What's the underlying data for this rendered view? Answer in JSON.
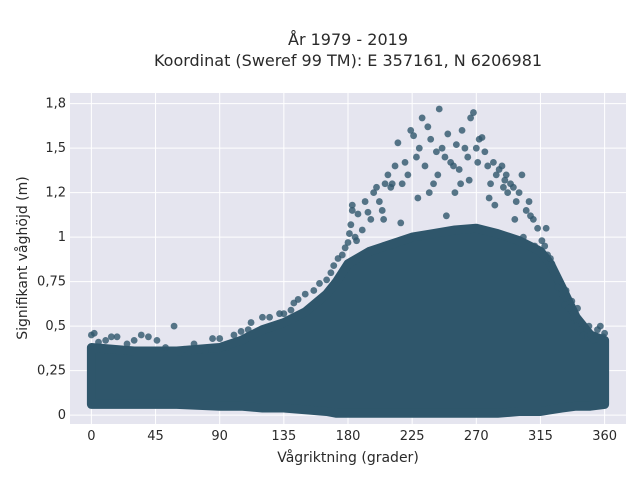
{
  "chart_data": {
    "type": "scatter",
    "title_line1": "År 1979 - 2019",
    "title_line2": "Koordinat (Sweref 99 TM): E 357161, N 6206981",
    "xlabel": "Vågriktning (grader)",
    "ylabel": "Signifikant våghöjd (m)",
    "xlim": [
      -15,
      375
    ],
    "ylim": [
      -0.05,
      1.81
    ],
    "x_ticks": [
      {
        "value": 0,
        "label": "0"
      },
      {
        "value": 45,
        "label": "45"
      },
      {
        "value": 90,
        "label": "90"
      },
      {
        "value": 135,
        "label": "135"
      },
      {
        "value": 180,
        "label": "180"
      },
      {
        "value": 225,
        "label": "225"
      },
      {
        "value": 270,
        "label": "270"
      },
      {
        "value": 315,
        "label": "315"
      },
      {
        "value": 360,
        "label": "360"
      }
    ],
    "y_ticks": [
      {
        "value": 0,
        "label": "0"
      },
      {
        "value": 0.25,
        "label": "0,25"
      },
      {
        "value": 0.5,
        "label": "0,5"
      },
      {
        "value": 0.75,
        "label": "0,75"
      },
      {
        "value": 1,
        "label": "1"
      },
      {
        "value": 1.25,
        "label": "1,2"
      },
      {
        "value": 1.5,
        "label": "1,5"
      },
      {
        "value": 1.75,
        "label": "1,8"
      }
    ],
    "grid": true,
    "colors": {
      "plot_bg": "#e5e5ef",
      "grid": "#ffffff",
      "marker": "#2f566b"
    },
    "series": [
      {
        "points": [
          [
            0,
            0.45
          ],
          [
            2,
            0.46
          ],
          [
            5,
            0.41
          ],
          [
            10,
            0.42
          ],
          [
            14,
            0.44
          ],
          [
            18,
            0.44
          ],
          [
            25,
            0.4
          ],
          [
            30,
            0.42
          ],
          [
            35,
            0.45
          ],
          [
            40,
            0.44
          ],
          [
            46,
            0.42
          ],
          [
            52,
            0.38
          ],
          [
            58,
            0.5
          ],
          [
            65,
            0.37
          ],
          [
            72,
            0.4
          ],
          [
            80,
            0.36
          ],
          [
            85,
            0.43
          ],
          [
            90,
            0.43
          ],
          [
            95,
            0.38
          ],
          [
            100,
            0.45
          ],
          [
            105,
            0.47
          ],
          [
            110,
            0.48
          ],
          [
            112,
            0.52
          ],
          [
            120,
            0.55
          ],
          [
            125,
            0.55
          ],
          [
            132,
            0.57
          ],
          [
            135,
            0.57
          ],
          [
            140,
            0.59
          ],
          [
            142,
            0.63
          ],
          [
            145,
            0.65
          ],
          [
            150,
            0.68
          ],
          [
            156,
            0.7
          ],
          [
            160,
            0.74
          ],
          [
            165,
            0.76
          ],
          [
            168,
            0.8
          ],
          [
            170,
            0.84
          ],
          [
            173,
            0.88
          ],
          [
            176,
            0.9
          ],
          [
            178,
            0.94
          ],
          [
            180,
            0.97
          ],
          [
            181,
            1.02
          ],
          [
            182,
            1.07
          ],
          [
            183,
            1.18
          ],
          [
            185,
            1.0
          ],
          [
            187,
            1.13
          ],
          [
            190,
            1.04
          ],
          [
            192,
            1.2
          ],
          [
            194,
            1.14
          ],
          [
            196,
            1.1
          ],
          [
            198,
            1.25
          ],
          [
            200,
            1.28
          ],
          [
            202,
            1.2
          ],
          [
            204,
            1.15
          ],
          [
            206,
            1.3
          ],
          [
            208,
            1.35
          ],
          [
            210,
            1.28
          ],
          [
            213,
            1.4
          ],
          [
            215,
            1.53
          ],
          [
            218,
            1.3
          ],
          [
            220,
            1.42
          ],
          [
            222,
            1.35
          ],
          [
            224,
            1.6
          ],
          [
            226,
            1.57
          ],
          [
            228,
            1.45
          ],
          [
            230,
            1.5
          ],
          [
            232,
            1.67
          ],
          [
            234,
            1.4
          ],
          [
            236,
            1.62
          ],
          [
            238,
            1.55
          ],
          [
            240,
            1.3
          ],
          [
            242,
            1.48
          ],
          [
            244,
            1.72
          ],
          [
            246,
            1.5
          ],
          [
            248,
            1.45
          ],
          [
            250,
            1.58
          ],
          [
            252,
            1.42
          ],
          [
            254,
            1.4
          ],
          [
            256,
            1.52
          ],
          [
            258,
            1.38
          ],
          [
            260,
            1.6
          ],
          [
            262,
            1.5
          ],
          [
            264,
            1.45
          ],
          [
            266,
            1.67
          ],
          [
            268,
            1.7
          ],
          [
            270,
            1.5
          ],
          [
            272,
            1.55
          ],
          [
            274,
            1.56
          ],
          [
            276,
            1.48
          ],
          [
            278,
            1.4
          ],
          [
            280,
            1.3
          ],
          [
            282,
            1.42
          ],
          [
            284,
            1.35
          ],
          [
            286,
            1.38
          ],
          [
            288,
            1.4
          ],
          [
            290,
            1.32
          ],
          [
            292,
            1.25
          ],
          [
            294,
            1.3
          ],
          [
            296,
            1.28
          ],
          [
            298,
            1.2
          ],
          [
            300,
            1.25
          ],
          [
            302,
            1.35
          ],
          [
            305,
            1.15
          ],
          [
            308,
            1.12
          ],
          [
            310,
            1.1
          ],
          [
            313,
            1.05
          ],
          [
            316,
            0.98
          ],
          [
            318,
            0.95
          ],
          [
            320,
            0.9
          ],
          [
            322,
            0.88
          ],
          [
            325,
            0.8
          ],
          [
            327,
            0.72
          ],
          [
            330,
            0.68
          ],
          [
            332,
            0.62
          ],
          [
            335,
            0.6
          ],
          [
            338,
            0.55
          ],
          [
            340,
            0.5
          ],
          [
            343,
            0.48
          ],
          [
            345,
            0.45
          ],
          [
            348,
            0.44
          ],
          [
            350,
            0.45
          ],
          [
            352,
            0.42
          ],
          [
            355,
            0.48
          ],
          [
            357,
            0.5
          ],
          [
            359,
            0.44
          ],
          [
            360,
            0.46
          ],
          [
            183,
            1.15
          ],
          [
            205,
            1.1
          ],
          [
            217,
            1.08
          ],
          [
            229,
            1.22
          ],
          [
            237,
            1.25
          ],
          [
            249,
            1.12
          ],
          [
            259,
            1.3
          ],
          [
            271,
            1.42
          ],
          [
            279,
            1.22
          ],
          [
            289,
            1.28
          ],
          [
            297,
            1.1
          ],
          [
            303,
            1.0
          ],
          [
            311,
            0.95
          ],
          [
            323,
            0.85
          ],
          [
            333,
            0.7
          ],
          [
            341,
            0.6
          ],
          [
            186,
            0.98
          ],
          [
            211,
            1.3
          ],
          [
            243,
            1.35
          ],
          [
            255,
            1.25
          ],
          [
            265,
            1.32
          ],
          [
            283,
            1.18
          ],
          [
            291,
            1.35
          ],
          [
            307,
            1.2
          ],
          [
            319,
            1.05
          ],
          [
            337,
            0.64
          ],
          [
            349,
            0.5
          ]
        ]
      }
    ],
    "density_envelope": {
      "x": [
        0,
        30,
        60,
        90,
        105,
        120,
        135,
        150,
        165,
        172,
        180,
        195,
        210,
        225,
        240,
        255,
        270,
        285,
        300,
        315,
        322,
        330,
        340,
        350,
        360
      ],
      "y_max": [
        0.38,
        0.36,
        0.36,
        0.38,
        0.42,
        0.48,
        0.52,
        0.58,
        0.68,
        0.75,
        0.85,
        0.92,
        0.96,
        1.0,
        1.02,
        1.04,
        1.05,
        1.02,
        0.98,
        0.92,
        0.85,
        0.72,
        0.55,
        0.45,
        0.42
      ],
      "y_min": [
        0.06,
        0.06,
        0.06,
        0.05,
        0.05,
        0.04,
        0.04,
        0.03,
        0.02,
        0.01,
        0.01,
        0.01,
        0.01,
        0.01,
        0.01,
        0.01,
        0.01,
        0.01,
        0.02,
        0.02,
        0.03,
        0.04,
        0.05,
        0.05,
        0.06
      ]
    }
  }
}
